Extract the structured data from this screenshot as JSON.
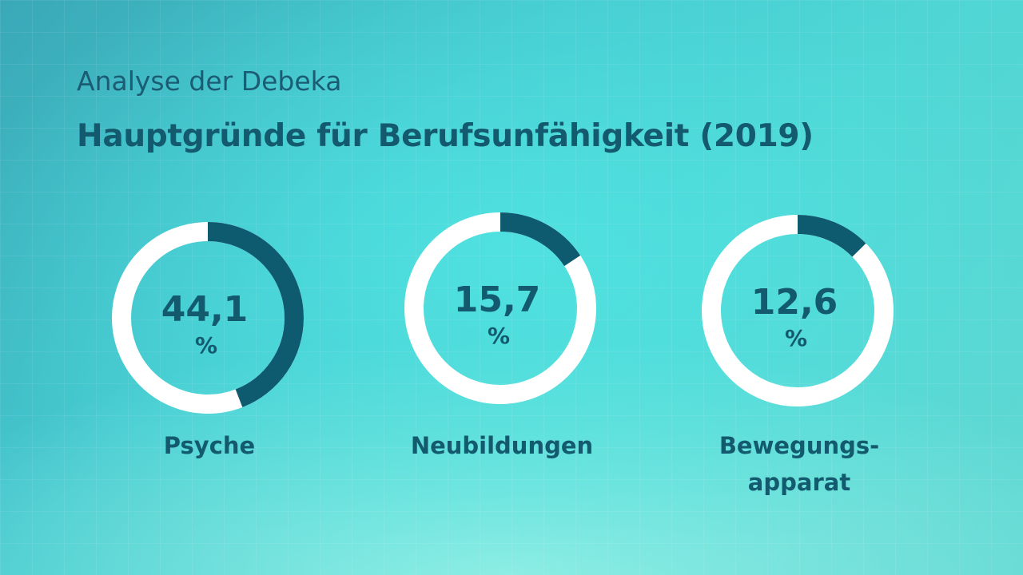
{
  "subtitle": "Analyse der Debeka",
  "title": "Hauptgründe für Berufsunfähigkeit (2019)",
  "colors": {
    "segment": "#0e5a6e",
    "ring": "#ffffff",
    "text": "#135a6e"
  },
  "chart_data": {
    "type": "pie",
    "title": "Hauptgründe für Berufsunfähigkeit (2019)",
    "unit": "%",
    "items": [
      {
        "display": "44,1",
        "value": 44.1,
        "unit": "%",
        "label_lines": [
          "Psyche"
        ]
      },
      {
        "display": "15,7",
        "value": 15.7,
        "unit": "%",
        "label_lines": [
          "Neubildungen"
        ]
      },
      {
        "display": "12,6",
        "value": 12.6,
        "unit": "%",
        "label_lines": [
          "Bewegungs-",
          "apparat"
        ]
      }
    ]
  }
}
